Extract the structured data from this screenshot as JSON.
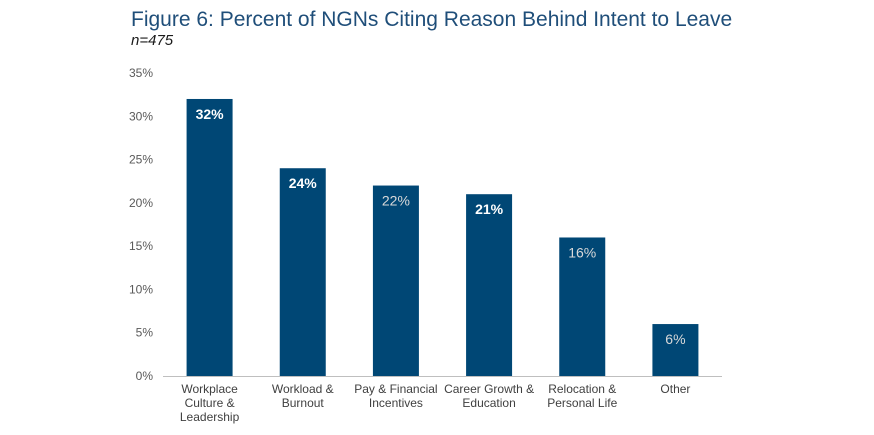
{
  "chart_data": {
    "type": "bar",
    "title": "Figure 6: Percent of NGNs Citing Reason Behind Intent to Leave",
    "subtitle": "n=475",
    "xlabel": "",
    "ylabel": "",
    "categories": [
      [
        "Workplace",
        "Culture &",
        "Leadership"
      ],
      [
        "Workload &",
        "Burnout"
      ],
      [
        "Pay & Financial",
        "Incentives"
      ],
      [
        "Career Growth &",
        "Education"
      ],
      [
        "Relocation &",
        "Personal Life"
      ],
      [
        "Other"
      ]
    ],
    "values": [
      32,
      24,
      22,
      21,
      16,
      6
    ],
    "data_labels": [
      "32%",
      "24%",
      "22%",
      "21%",
      "16%",
      "6%"
    ],
    "label_bold": [
      true,
      true,
      false,
      true,
      false,
      false
    ],
    "ylim": [
      0,
      35
    ],
    "yticks": [
      0,
      5,
      10,
      15,
      20,
      25,
      30,
      35
    ],
    "ytick_labels": [
      "0%",
      "5%",
      "10%",
      "15%",
      "20%",
      "25%",
      "30%",
      "35%"
    ],
    "grid": false,
    "legend": "none",
    "colors": {
      "bar": "#004775",
      "label_bold": "#ffffff",
      "label_light": "#d9d9d9",
      "axis": "#bfbfbf"
    }
  }
}
